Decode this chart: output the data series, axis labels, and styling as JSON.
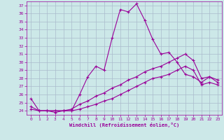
{
  "title": "",
  "xlabel": "Windchill (Refroidissement éolien,°C)",
  "ylabel": "",
  "background_color": "#cce8e8",
  "line_color": "#990099",
  "grid_color": "#aabbcc",
  "xlim": [
    -0.5,
    23.5
  ],
  "ylim": [
    23.5,
    37.5
  ],
  "yticks": [
    24,
    25,
    26,
    27,
    28,
    29,
    30,
    31,
    32,
    33,
    34,
    35,
    36,
    37
  ],
  "xticks": [
    0,
    1,
    2,
    3,
    4,
    5,
    6,
    7,
    8,
    9,
    10,
    11,
    12,
    13,
    14,
    15,
    16,
    17,
    18,
    19,
    20,
    21,
    22,
    23
  ],
  "line1_x": [
    0,
    1,
    2,
    3,
    4,
    5,
    6,
    7,
    8,
    9,
    10,
    11,
    12,
    13,
    14,
    15,
    16,
    17,
    18,
    19,
    20,
    21,
    22,
    23
  ],
  "line1_y": [
    25.5,
    24.0,
    24.0,
    23.8,
    24.0,
    24.0,
    26.0,
    28.2,
    29.5,
    29.0,
    33.0,
    36.5,
    36.2,
    37.2,
    35.2,
    32.8,
    31.0,
    31.2,
    30.0,
    28.5,
    28.2,
    27.5,
    28.2,
    27.5
  ],
  "line2_x": [
    0,
    1,
    2,
    3,
    4,
    5,
    6,
    7,
    8,
    9,
    10,
    11,
    12,
    13,
    14,
    15,
    16,
    17,
    18,
    19,
    20,
    21,
    22,
    23
  ],
  "line2_y": [
    24.5,
    24.0,
    24.0,
    24.0,
    24.0,
    24.2,
    24.8,
    25.2,
    25.8,
    26.2,
    26.8,
    27.2,
    27.8,
    28.2,
    28.8,
    29.2,
    29.5,
    30.0,
    30.5,
    31.0,
    30.2,
    28.0,
    28.2,
    27.8
  ],
  "line3_x": [
    0,
    1,
    2,
    3,
    4,
    5,
    6,
    7,
    8,
    9,
    10,
    11,
    12,
    13,
    14,
    15,
    16,
    17,
    18,
    19,
    20,
    21,
    22,
    23
  ],
  "line3_y": [
    24.2,
    24.0,
    24.0,
    24.0,
    24.0,
    24.0,
    24.2,
    24.5,
    24.8,
    25.2,
    25.5,
    26.0,
    26.5,
    27.0,
    27.5,
    28.0,
    28.2,
    28.5,
    29.0,
    29.5,
    29.0,
    27.2,
    27.5,
    27.2
  ]
}
